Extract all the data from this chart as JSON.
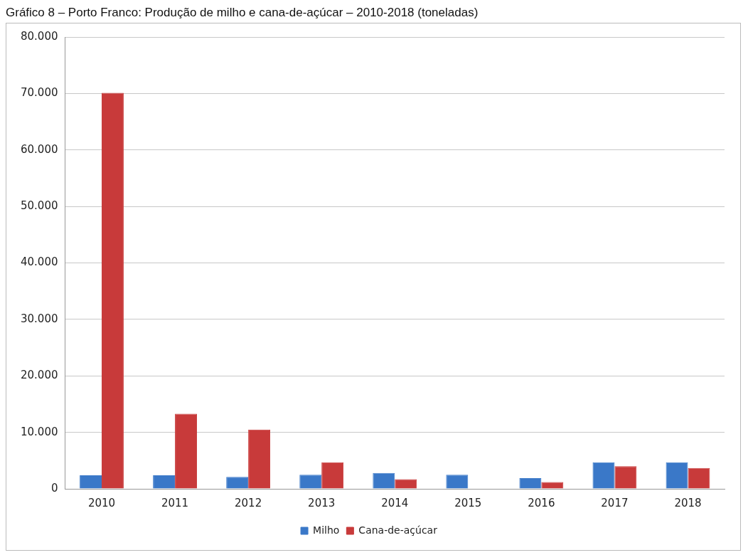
{
  "chart_data": {
    "type": "bar",
    "title": "Gráfico 8 – Porto Franco: Produção de milho e cana-de-açúcar – 2010-2018 (toneladas)",
    "categories": [
      "2010",
      "2011",
      "2012",
      "2013",
      "2014",
      "2015",
      "2016",
      "2017",
      "2018"
    ],
    "series": [
      {
        "name": "Milho",
        "color": "#3a78c8",
        "values": [
          2400,
          2400,
          2100,
          2500,
          2800,
          2500,
          1900,
          4700,
          4700
        ]
      },
      {
        "name": "Cana-de-açúcar",
        "color": "#c83a3a",
        "values": [
          70100,
          13300,
          10500,
          4700,
          1700,
          0,
          1200,
          4000,
          3700
        ]
      }
    ],
    "ylim": [
      0,
      80000
    ],
    "yticks": [
      {
        "value": 0,
        "label": "0"
      },
      {
        "value": 10000,
        "label": "10.000"
      },
      {
        "value": 20000,
        "label": "20.000"
      },
      {
        "value": 30000,
        "label": "30.000"
      },
      {
        "value": 40000,
        "label": "40.000"
      },
      {
        "value": 50000,
        "label": "50.000"
      },
      {
        "value": 60000,
        "label": "60.000"
      },
      {
        "value": 70000,
        "label": "70.000"
      },
      {
        "value": 80000,
        "label": "80.000"
      }
    ],
    "grid": "y",
    "legend": "bottom"
  }
}
